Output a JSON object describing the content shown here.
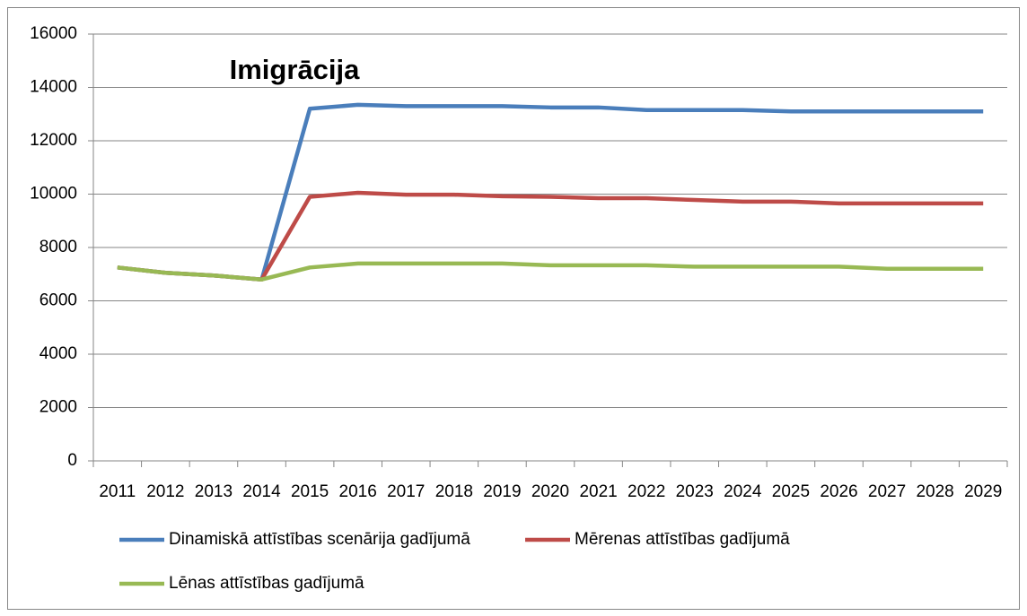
{
  "chart_data": {
    "type": "line",
    "title": "Imigrācija",
    "categories": [
      "2011",
      "2012",
      "2013",
      "2014",
      "2015",
      "2016",
      "2017",
      "2018",
      "2019",
      "2020",
      "2021",
      "2022",
      "2023",
      "2024",
      "2025",
      "2026",
      "2027",
      "2028",
      "2029"
    ],
    "series": [
      {
        "name": "Dinamiskā attīstības scenārija gadījumā",
        "color": "#4a7ebb",
        "values": [
          7250,
          7050,
          6950,
          6800,
          13200,
          13350,
          13300,
          13300,
          13300,
          13250,
          13250,
          13150,
          13150,
          13150,
          13100,
          13100,
          13100,
          13100,
          13100
        ]
      },
      {
        "name": "Mērenas attīstības gadījumā",
        "color": "#be4b48",
        "values": [
          7250,
          7050,
          6950,
          6800,
          9900,
          10050,
          9980,
          9980,
          9920,
          9900,
          9850,
          9850,
          9780,
          9720,
          9720,
          9650,
          9650,
          9650,
          9650
        ]
      },
      {
        "name": "Lēnas attīstības gadījumā",
        "color": "#98b954",
        "values": [
          7250,
          7050,
          6950,
          6800,
          7250,
          7400,
          7400,
          7400,
          7400,
          7330,
          7330,
          7330,
          7280,
          7280,
          7280,
          7280,
          7200,
          7200,
          7200
        ]
      }
    ],
    "ylim": [
      0,
      16000
    ],
    "yticks": [
      0,
      2000,
      4000,
      6000,
      8000,
      10000,
      12000,
      14000,
      16000
    ],
    "grid": true
  }
}
